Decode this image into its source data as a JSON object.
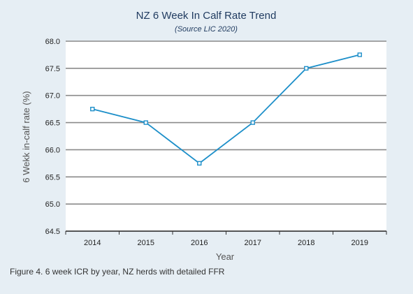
{
  "caption": "Figure 4. 6 week ICR by year, NZ herds with detailed FFR",
  "colors": {
    "background": "#e6eef4",
    "plot_background": "#ffffff",
    "series": "#1d8fc9",
    "grid": "#8a8a8a",
    "title": "#1f3a5f"
  },
  "chart_data": {
    "type": "line",
    "title": "NZ 6 Week In Calf Rate Trend",
    "subtitle": "(Source LIC 2020)",
    "xlabel": "Year",
    "ylabel": "6 Wekk in-calf rate (%)",
    "categories": [
      "2014",
      "2015",
      "2016",
      "2017",
      "2018",
      "2019"
    ],
    "series": [
      {
        "values": [
          66.75,
          66.5,
          65.75,
          66.5,
          67.5,
          67.75
        ]
      }
    ],
    "ylim": [
      64.5,
      68.0
    ],
    "yticks": [
      "64.5",
      "65.0",
      "65.5",
      "66.0",
      "66.5",
      "67.0",
      "67.5",
      "68.0"
    ],
    "grid": true,
    "marker": "square"
  }
}
